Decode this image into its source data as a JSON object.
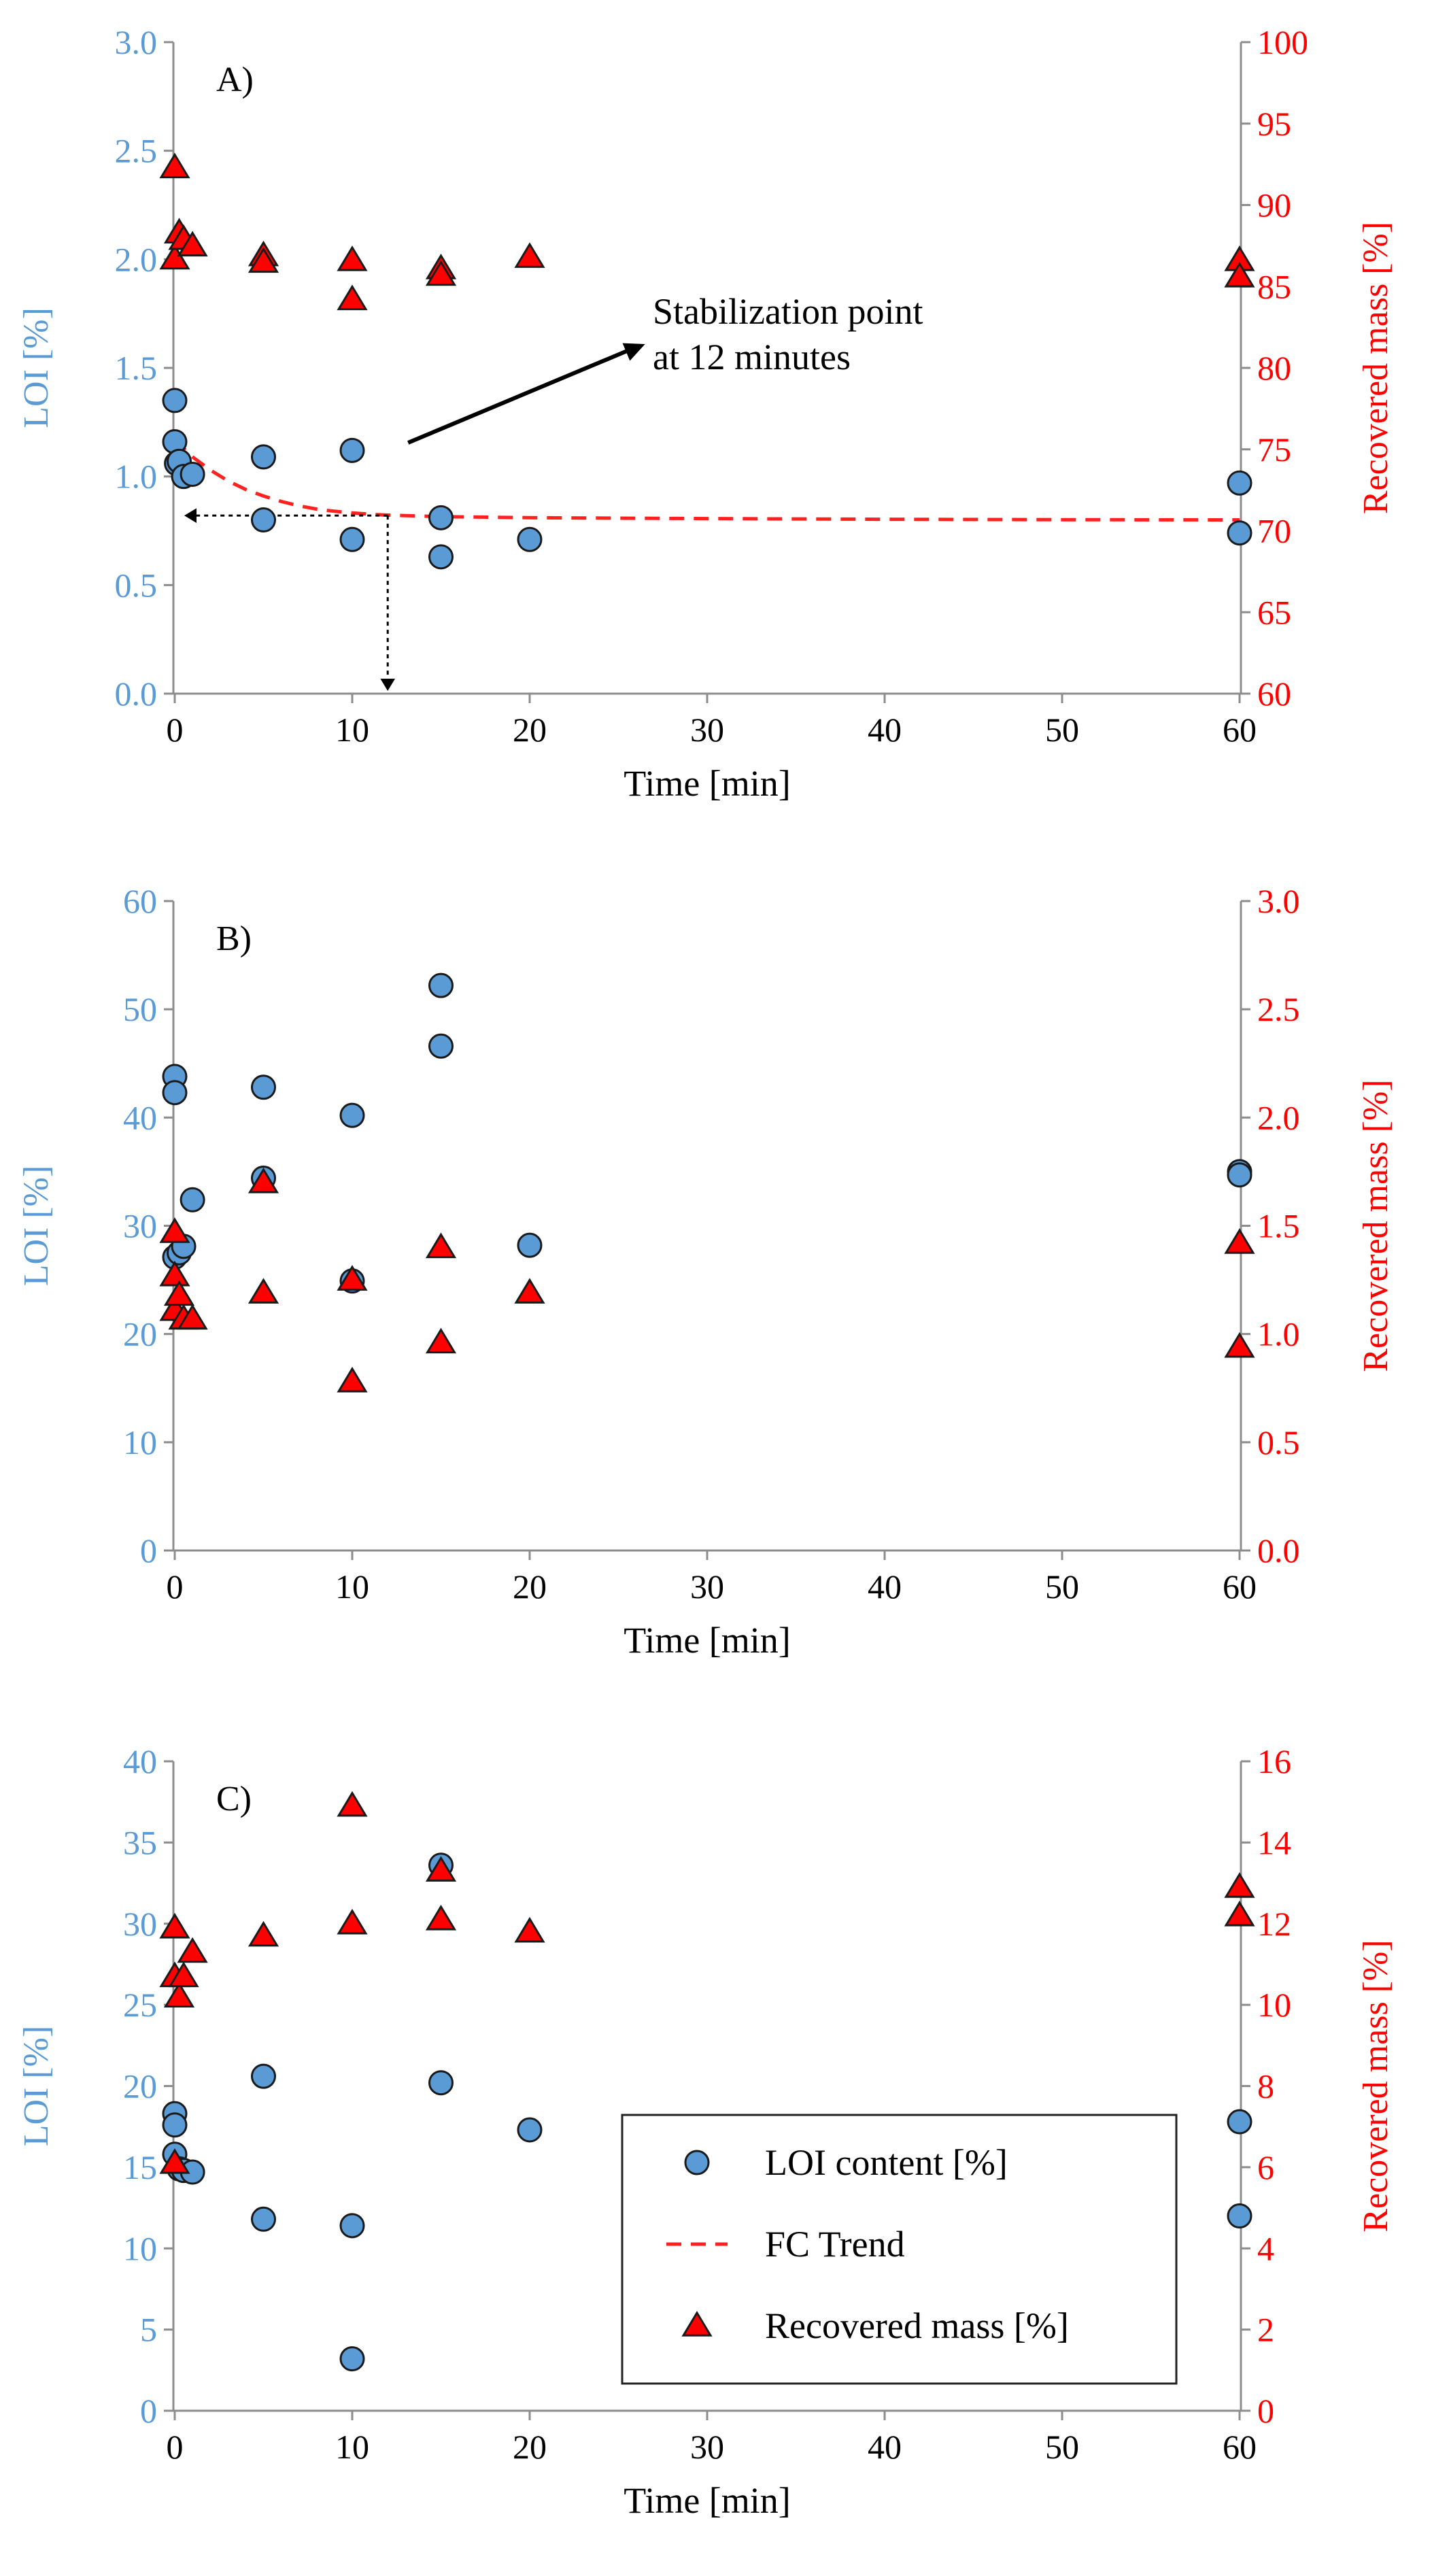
{
  "chart_data": [
    {
      "type": "scatter",
      "panel_label": "A)",
      "xlabel": "Time [min]",
      "ylabel": "LOI [%]",
      "y2label": "Recovered mass [%]",
      "xlim": [
        0,
        60
      ],
      "xticks": [
        "0",
        "10",
        "20",
        "30",
        "40",
        "50",
        "60"
      ],
      "ylim": [
        0,
        3
      ],
      "yticks": [
        "0.0",
        "0.5",
        "1.0",
        "1.5",
        "2.0",
        "2.5",
        "3.0"
      ],
      "y2lim": [
        60,
        100
      ],
      "y2ticks": [
        "60",
        "65",
        "70",
        "75",
        "80",
        "85",
        "90",
        "95",
        "100"
      ],
      "series": [
        {
          "name": "LOI content [%]",
          "axis": "left",
          "marker": "circle",
          "points": [
            [
              0,
              1.35
            ],
            [
              0,
              1.16
            ],
            [
              0.1,
              1.06
            ],
            [
              0.25,
              1.07
            ],
            [
              0.5,
              1.0
            ],
            [
              1,
              1.01
            ],
            [
              5,
              1.09
            ],
            [
              5,
              0.8
            ],
            [
              10,
              1.12
            ],
            [
              10,
              0.71
            ],
            [
              15,
              0.81
            ],
            [
              15,
              0.63
            ],
            [
              20,
              0.71
            ],
            [
              60,
              0.97
            ],
            [
              60,
              0.74
            ]
          ]
        },
        {
          "name": "Recovered mass [%]",
          "axis": "right",
          "marker": "triangle",
          "points": [
            [
              0,
              92.3
            ],
            [
              0,
              86.7
            ],
            [
              0.25,
              88.3
            ],
            [
              0.5,
              87.9
            ],
            [
              1,
              87.5
            ],
            [
              5,
              86.9
            ],
            [
              5,
              86.5
            ],
            [
              10,
              86.6
            ],
            [
              10,
              84.2
            ],
            [
              15,
              86.1
            ],
            [
              15,
              85.7
            ],
            [
              20,
              86.8
            ],
            [
              60,
              86.6
            ],
            [
              60,
              85.6
            ]
          ]
        },
        {
          "name": "FC Trend",
          "axis": "left",
          "style": "dashed",
          "points": [
            [
              0,
              1.17
            ],
            [
              1,
              1.09
            ],
            [
              2,
              1.03
            ],
            [
              3,
              0.98
            ],
            [
              4,
              0.94
            ],
            [
              5,
              0.91
            ],
            [
              6,
              0.885
            ],
            [
              7,
              0.865
            ],
            [
              8,
              0.85
            ],
            [
              9,
              0.84
            ],
            [
              10,
              0.832
            ],
            [
              11,
              0.826
            ],
            [
              12,
              0.822
            ],
            [
              15,
              0.815
            ],
            [
              20,
              0.81
            ],
            [
              30,
              0.806
            ],
            [
              40,
              0.803
            ],
            [
              50,
              0.801
            ],
            [
              60,
              0.8
            ]
          ]
        }
      ],
      "annotations": [
        {
          "text_line1": "Stabilization point",
          "text_line2": "at 12 minutes",
          "point": [
            12,
            0.82
          ]
        }
      ]
    },
    {
      "type": "scatter",
      "panel_label": "B)",
      "xlabel": "Time [min]",
      "ylabel": "LOI [%]",
      "y2label": "Recovered mass  [%]",
      "xlim": [
        0,
        60
      ],
      "xticks": [
        "0",
        "10",
        "20",
        "30",
        "40",
        "50",
        "60"
      ],
      "ylim": [
        0,
        60
      ],
      "yticks": [
        "0",
        "10",
        "20",
        "30",
        "40",
        "50",
        "60"
      ],
      "y2lim": [
        0,
        3
      ],
      "y2ticks": [
        "0.0",
        "0.5",
        "1.0",
        "1.5",
        "2.0",
        "2.5",
        "3.0"
      ],
      "series": [
        {
          "name": "LOI content [%]",
          "axis": "left",
          "marker": "circle",
          "points": [
            [
              0,
              43.8
            ],
            [
              0,
              42.3
            ],
            [
              0,
              27.1
            ],
            [
              0.25,
              27.5
            ],
            [
              0.5,
              28.1
            ],
            [
              1,
              32.4
            ],
            [
              5,
              42.8
            ],
            [
              5,
              34.4
            ],
            [
              10,
              40.2
            ],
            [
              10,
              24.9
            ],
            [
              15,
              52.2
            ],
            [
              15,
              46.6
            ],
            [
              20,
              28.2
            ],
            [
              60,
              35.0
            ],
            [
              60,
              34.7
            ]
          ]
        },
        {
          "name": "Recovered mass [%]",
          "axis": "right",
          "marker": "triangle",
          "points": [
            [
              0,
              1.47
            ],
            [
              0,
              1.27
            ],
            [
              0,
              1.11
            ],
            [
              0.25,
              1.18
            ],
            [
              0.5,
              1.07
            ],
            [
              1,
              1.07
            ],
            [
              5,
              1.7
            ],
            [
              5,
              1.19
            ],
            [
              10,
              1.25
            ],
            [
              10,
              0.78
            ],
            [
              15,
              1.4
            ],
            [
              15,
              0.96
            ],
            [
              20,
              1.19
            ],
            [
              60,
              1.42
            ],
            [
              60,
              0.94
            ]
          ]
        }
      ]
    },
    {
      "type": "scatter",
      "panel_label": "C)",
      "xlabel": "Time [min]",
      "ylabel": "LOI [%]",
      "y2label": "Recovered mass [%]",
      "xlim": [
        0,
        60
      ],
      "xticks": [
        "0",
        "10",
        "20",
        "30",
        "40",
        "50",
        "60"
      ],
      "ylim": [
        0,
        40
      ],
      "yticks": [
        "0",
        "5",
        "10",
        "15",
        "20",
        "25",
        "30",
        "35",
        "40"
      ],
      "y2lim": [
        0,
        16
      ],
      "y2ticks": [
        "0",
        "2",
        "4",
        "6",
        "8",
        "10",
        "12",
        "14",
        "16"
      ],
      "series": [
        {
          "name": "LOI content [%]",
          "axis": "left",
          "marker": "circle",
          "points": [
            [
              0,
              18.3
            ],
            [
              0,
              17.6
            ],
            [
              0,
              15.8
            ],
            [
              0.25,
              14.9
            ],
            [
              0.5,
              14.8
            ],
            [
              1,
              14.7
            ],
            [
              5,
              20.6
            ],
            [
              5,
              11.8
            ],
            [
              10,
              11.4
            ],
            [
              10,
              3.2
            ],
            [
              15,
              33.6
            ],
            [
              15,
              20.2
            ],
            [
              20,
              17.3
            ],
            [
              60,
              17.8
            ],
            [
              60,
              12.0
            ]
          ]
        },
        {
          "name": "Recovered mass [%]",
          "axis": "right",
          "marker": "triangle",
          "points": [
            [
              0,
              11.9
            ],
            [
              0,
              10.7
            ],
            [
              0,
              6.1
            ],
            [
              0.25,
              10.2
            ],
            [
              0.5,
              10.7
            ],
            [
              1,
              11.3
            ],
            [
              5,
              11.7
            ],
            [
              10,
              14.9
            ],
            [
              10,
              12.0
            ],
            [
              15,
              13.3
            ],
            [
              15,
              12.1
            ],
            [
              20,
              11.8
            ],
            [
              60,
              12.9
            ],
            [
              60,
              12.2
            ]
          ]
        }
      ],
      "legend": {
        "position": "bottom-right",
        "entries": [
          "LOI content [%]",
          "FC Trend",
          "Recovered mass [%]"
        ]
      }
    }
  ],
  "colors": {
    "loi_axis": "#5b9bd5",
    "mass_axis": "#ff0000",
    "circle_fill": "#5b9bd5",
    "triangle_fill": "#ff0000",
    "trend": "#ff2020"
  }
}
